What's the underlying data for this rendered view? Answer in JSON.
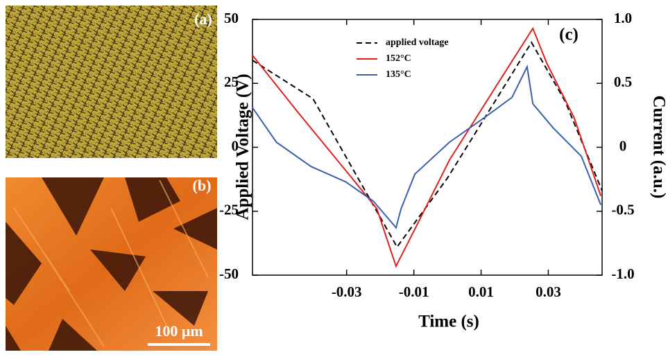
{
  "panels": {
    "a_label": "(a)",
    "b_label": "(b)",
    "scale_bar": "100 μm"
  },
  "chart_data": {
    "type": "line",
    "annotation": "(c)",
    "x_label": "Time (s)",
    "y_label": "Applied Voltage (V)",
    "y2_label": "Current (a.u.)",
    "xlim": [
      -0.058,
      0.046
    ],
    "xticks": [
      -0.03,
      -0.01,
      0.01,
      0.03
    ],
    "ylim": [
      -50,
      50
    ],
    "yticks": [
      -50,
      -25,
      0,
      25,
      50
    ],
    "y2lim": [
      -1.0,
      1.0
    ],
    "y2ticks": [
      {
        "value": -1.0,
        "label": "-1.0"
      },
      -0.5,
      0,
      0.5,
      {
        "value": 1.0,
        "label": "1.0"
      }
    ],
    "legend": "upper left",
    "series": [
      {
        "name": "applied voltage",
        "color": "#000000",
        "dash": true,
        "x": [
          -0.058,
          -0.04,
          -0.015,
          0.0,
          0.025,
          0.035,
          0.046
        ],
        "values": [
          34,
          19,
          -39,
          -12,
          41,
          18,
          -17
        ]
      },
      {
        "name": "152°C",
        "color": "#e02020",
        "axis": "y2",
        "x": [
          -0.058,
          -0.0447,
          -0.0303,
          -0.021,
          -0.0153,
          -0.0097,
          0.0006,
          0.015,
          0.0254,
          0.0295,
          0.0377,
          0.0456
        ],
        "values": [
          0.72,
          0.28,
          -0.18,
          -0.48,
          -0.93,
          -0.64,
          -0.1,
          0.5,
          0.93,
          0.66,
          0.23,
          -0.38
        ]
      },
      {
        "name": "135°C",
        "color": "#3a5fb0",
        "axis": "y2",
        "x": [
          -0.058,
          -0.0509,
          -0.0406,
          -0.0303,
          -0.0221,
          -0.0159,
          -0.0153,
          -0.0138,
          -0.0097,
          0.0006,
          0.0109,
          0.0192,
          0.0237,
          0.0254,
          0.0315,
          0.0398,
          0.0456
        ],
        "values": [
          0.31,
          0.04,
          -0.15,
          -0.27,
          -0.42,
          -0.61,
          -0.63,
          -0.48,
          -0.21,
          0.04,
          0.23,
          0.39,
          0.63,
          0.34,
          0.15,
          -0.07,
          -0.45
        ]
      }
    ]
  }
}
